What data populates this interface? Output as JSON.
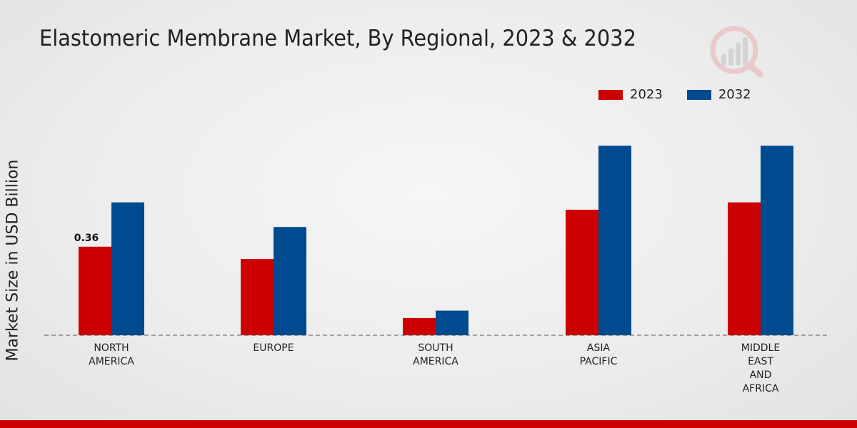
{
  "chart_data": {
    "type": "bar",
    "title": "Elastomeric Membrane Market, By Regional, 2023 & 2032",
    "xlabel": "",
    "ylabel": "Market Size in USD Billion",
    "categories": [
      [
        "NORTH",
        "AMERICA"
      ],
      [
        "EUROPE"
      ],
      [
        "SOUTH",
        "AMERICA"
      ],
      [
        "ASIA",
        "PACIFIC"
      ],
      [
        "MIDDLE",
        "EAST",
        "AND",
        "AFRICA"
      ]
    ],
    "series": [
      {
        "name": "2023",
        "color": "#cc0000",
        "values": [
          0.36,
          0.31,
          0.07,
          0.51,
          0.54
        ]
      },
      {
        "name": "2032",
        "color": "#004a8f",
        "values": [
          0.54,
          0.44,
          0.1,
          0.77,
          0.77
        ]
      }
    ],
    "data_labels": [
      {
        "series": 0,
        "index": 0,
        "text": "0.36"
      }
    ],
    "ylim": [
      0,
      1.0
    ],
    "grid": false,
    "legend_position": "top-right"
  }
}
